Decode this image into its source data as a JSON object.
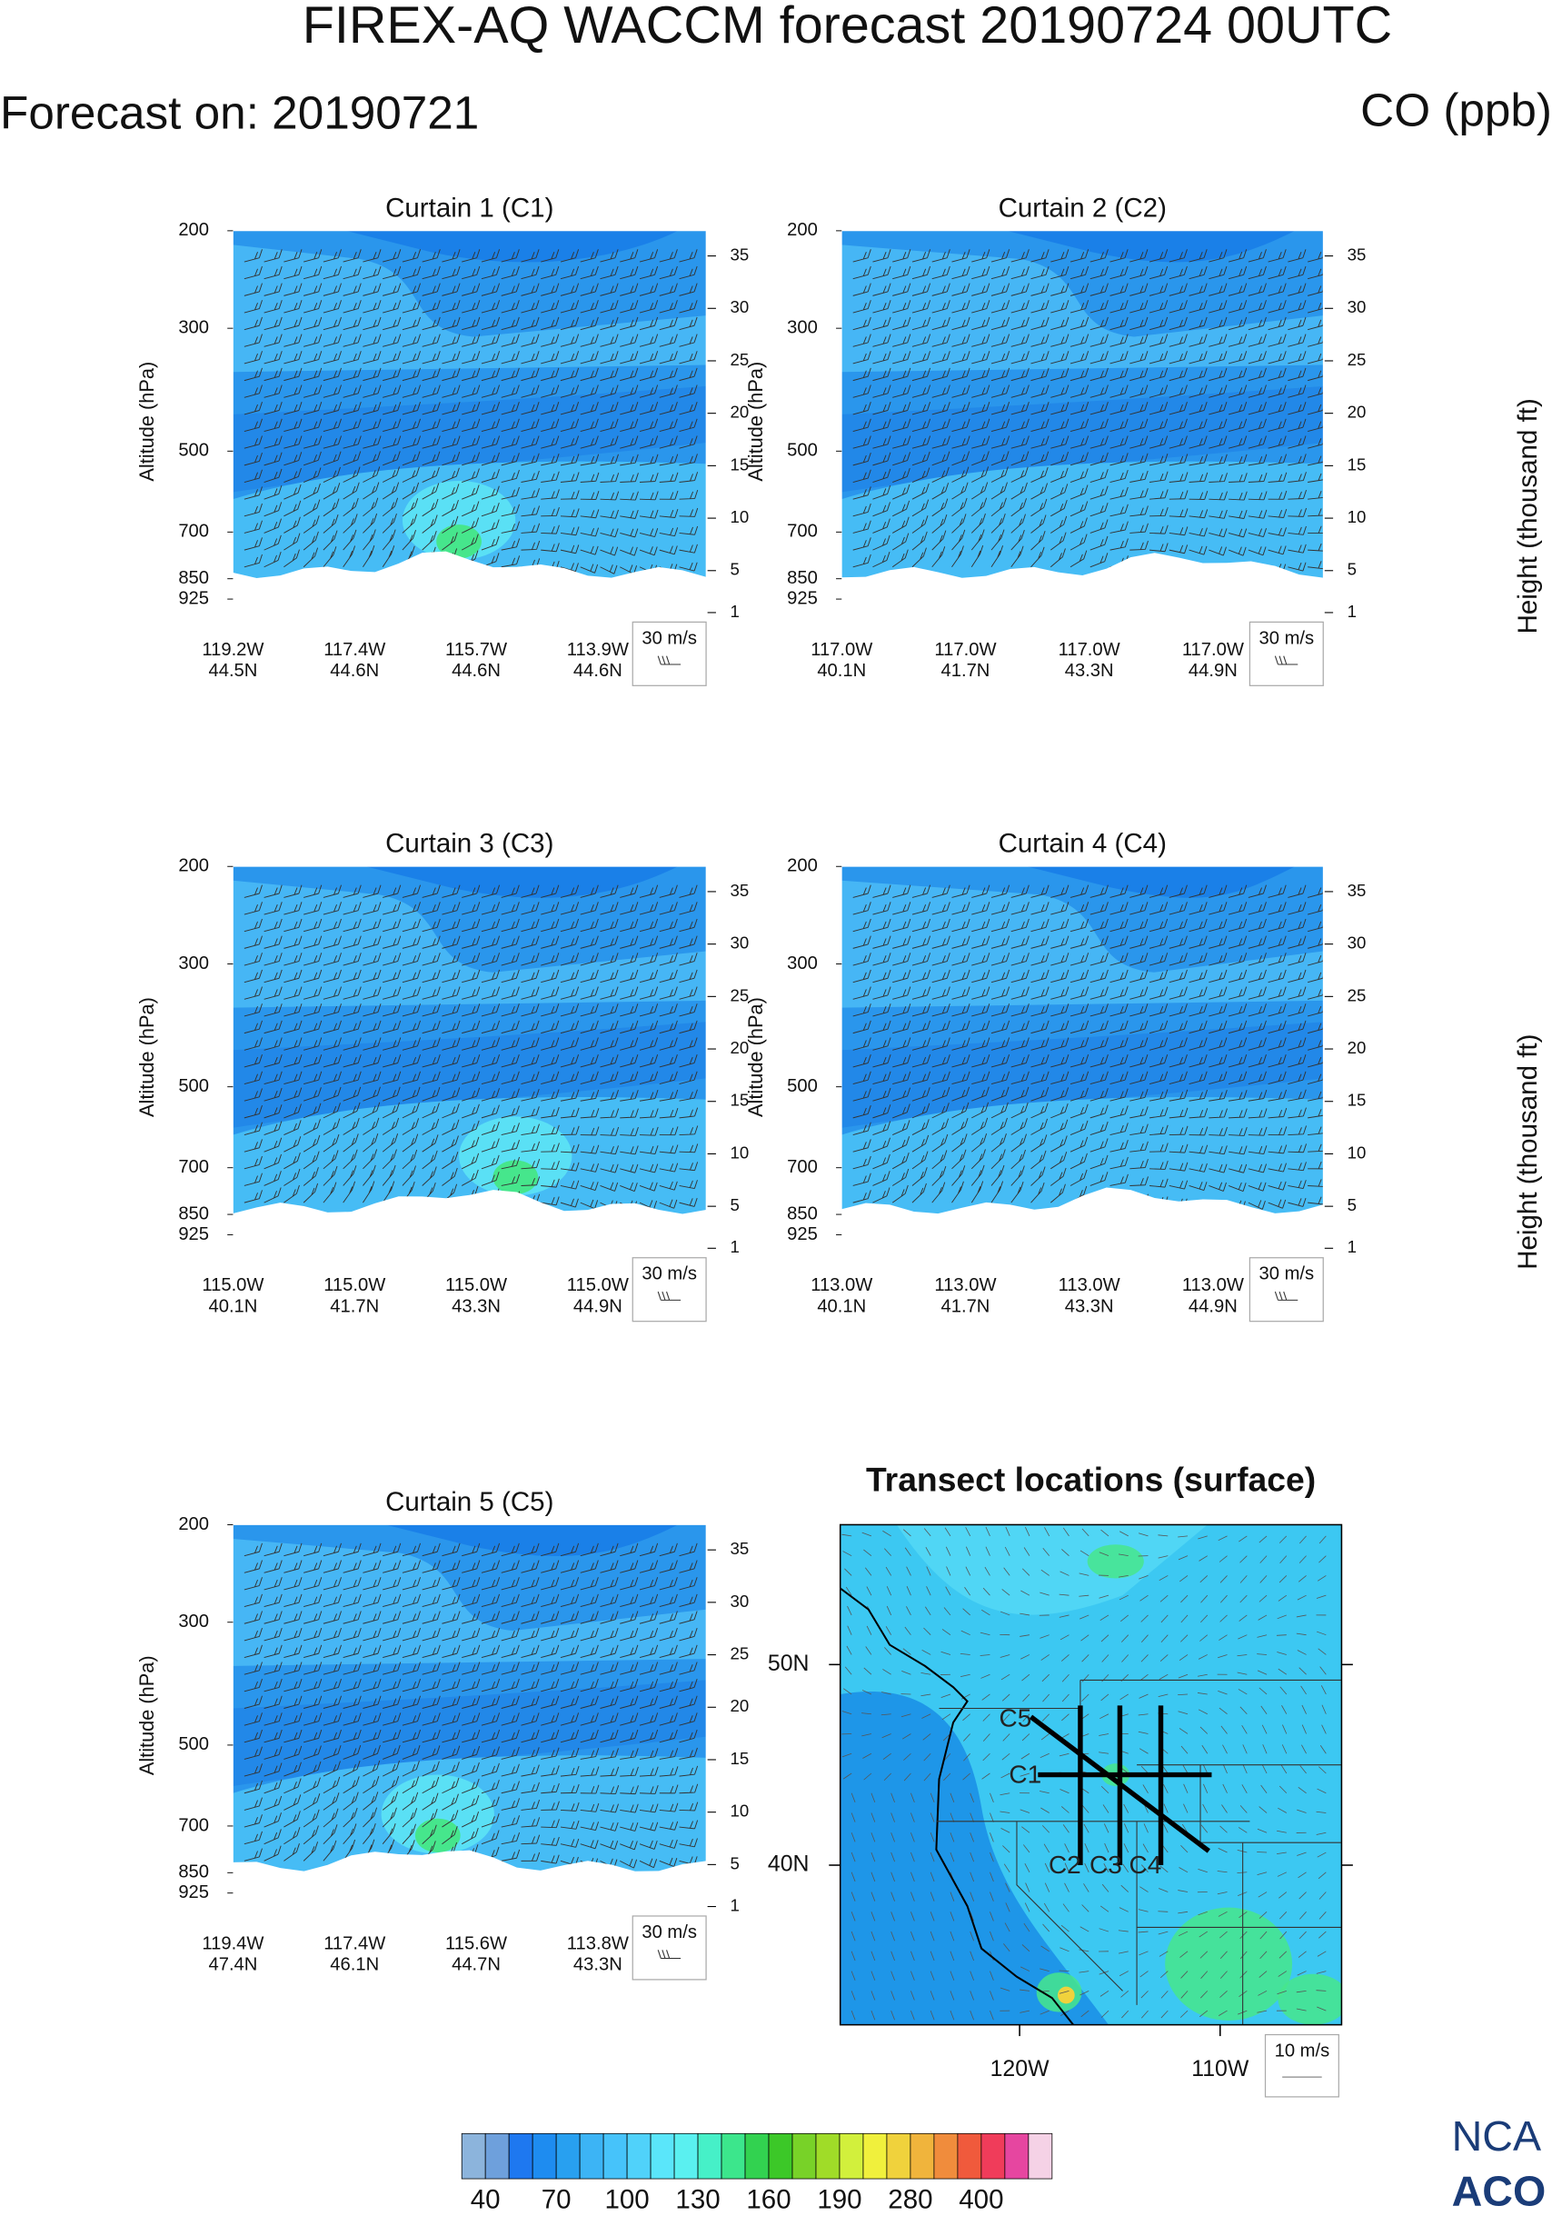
{
  "title": "FIREX-AQ WACCM forecast 20190724 00UTC",
  "subtitle_left": "Forecast on: 20190721",
  "subtitle_right": "CO (ppb)",
  "pressure_axis": {
    "label": "Altitude (hPa)",
    "log": true,
    "ylim": [
      200,
      1000
    ],
    "ticks": [
      200,
      300,
      500,
      700,
      850,
      925
    ]
  },
  "height_axis": {
    "label": "Height (thousand ft)",
    "lim": [
      37.4,
      0.5
    ],
    "ticks": [
      35,
      30,
      25,
      20,
      15,
      10,
      5,
      1
    ]
  },
  "panels": [
    {
      "title": "Curtain 1 (C1)",
      "wind_key": "30 m/s",
      "x_ticks": [
        {
          "lon": "119.2W",
          "lat": "44.5N"
        },
        {
          "lon": "117.4W",
          "lat": "44.6N"
        },
        {
          "lon": "115.7W",
          "lat": "44.6N"
        },
        {
          "lon": "113.9W",
          "lat": "44.6N"
        }
      ]
    },
    {
      "title": "Curtain 2 (C2)",
      "wind_key": "30 m/s",
      "x_ticks": [
        {
          "lon": "117.0W",
          "lat": "40.1N"
        },
        {
          "lon": "117.0W",
          "lat": "41.7N"
        },
        {
          "lon": "117.0W",
          "lat": "43.3N"
        },
        {
          "lon": "117.0W",
          "lat": "44.9N"
        }
      ]
    },
    {
      "title": "Curtain 3 (C3)",
      "wind_key": "30 m/s",
      "x_ticks": [
        {
          "lon": "115.0W",
          "lat": "40.1N"
        },
        {
          "lon": "115.0W",
          "lat": "41.7N"
        },
        {
          "lon": "115.0W",
          "lat": "43.3N"
        },
        {
          "lon": "115.0W",
          "lat": "44.9N"
        }
      ]
    },
    {
      "title": "Curtain 4 (C4)",
      "wind_key": "30 m/s",
      "x_ticks": [
        {
          "lon": "113.0W",
          "lat": "40.1N"
        },
        {
          "lon": "113.0W",
          "lat": "41.7N"
        },
        {
          "lon": "113.0W",
          "lat": "43.3N"
        },
        {
          "lon": "113.0W",
          "lat": "44.9N"
        }
      ]
    },
    {
      "title": "Curtain 5 (C5)",
      "wind_key": "30 m/s",
      "x_ticks": [
        {
          "lon": "119.4W",
          "lat": "47.4N"
        },
        {
          "lon": "117.4W",
          "lat": "46.1N"
        },
        {
          "lon": "115.6W",
          "lat": "44.7N"
        },
        {
          "lon": "113.8W",
          "lat": "43.3N"
        }
      ]
    }
  ],
  "map": {
    "title": "Transect locations (surface)",
    "lat_ticks": [
      "50N",
      "40N"
    ],
    "lon_ticks": [
      "120W",
      "110W"
    ],
    "transects": [
      "C1",
      "C2",
      "C3",
      "C4",
      "C5"
    ],
    "wind_key": "10 m/s"
  },
  "colorbar": {
    "labels": [
      40,
      70,
      100,
      130,
      160,
      190,
      280,
      400
    ],
    "colors": [
      "#8cb4dc",
      "#6ea0dc",
      "#1e78f0",
      "#1e8cf0",
      "#28a0f0",
      "#3cb4f5",
      "#46c3fa",
      "#50d2fa",
      "#5ae6fa",
      "#5af0f0",
      "#46f0c8",
      "#3ce68c",
      "#32d250",
      "#3cc828",
      "#78d228",
      "#a0dc28",
      "#d2f03c",
      "#f0f03c",
      "#f0d23c",
      "#f0b43c",
      "#f08c3c",
      "#f05a3c",
      "#f03c5a",
      "#e646a0",
      "#f5d2e6"
    ]
  },
  "logo": [
    "NCA",
    "ACO"
  ]
}
